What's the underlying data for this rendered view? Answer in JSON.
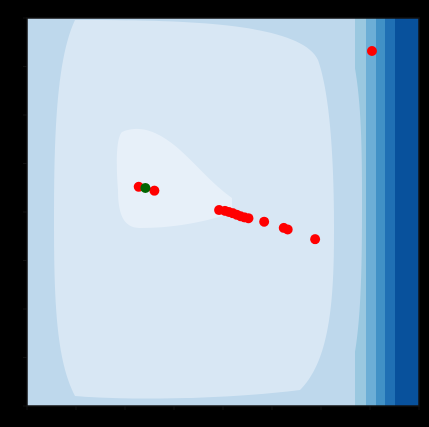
{
  "chart_data": {
    "type": "scatter",
    "title": "",
    "xlabel": "",
    "ylabel": "",
    "xlim": [
      0,
      1
    ],
    "ylim": [
      0,
      1
    ],
    "grid": false,
    "legend": "none",
    "background": "contour",
    "colormap": [
      "#e7f0f9",
      "#d8e7f4",
      "#bed8ec",
      "#9ac8e0",
      "#6caed6",
      "#4191c6",
      "#2070b4",
      "#08519c",
      "#083674"
    ],
    "series": [
      {
        "marker_color": "#ff0000",
        "points": [
          {
            "x": 0.88,
            "y": 0.915
          },
          {
            "x": 0.285,
            "y": 0.565
          },
          {
            "x": 0.325,
            "y": 0.555
          },
          {
            "x": 0.49,
            "y": 0.505
          },
          {
            "x": 0.505,
            "y": 0.503
          },
          {
            "x": 0.515,
            "y": 0.5
          },
          {
            "x": 0.525,
            "y": 0.497
          },
          {
            "x": 0.535,
            "y": 0.493
          },
          {
            "x": 0.545,
            "y": 0.489
          },
          {
            "x": 0.555,
            "y": 0.486
          },
          {
            "x": 0.565,
            "y": 0.484
          },
          {
            "x": 0.605,
            "y": 0.475
          },
          {
            "x": 0.655,
            "y": 0.459
          },
          {
            "x": 0.665,
            "y": 0.455
          },
          {
            "x": 0.735,
            "y": 0.43
          }
        ]
      },
      {
        "marker_color": "#006400",
        "points": [
          {
            "x": 0.302,
            "y": 0.562
          }
        ]
      }
    ]
  }
}
